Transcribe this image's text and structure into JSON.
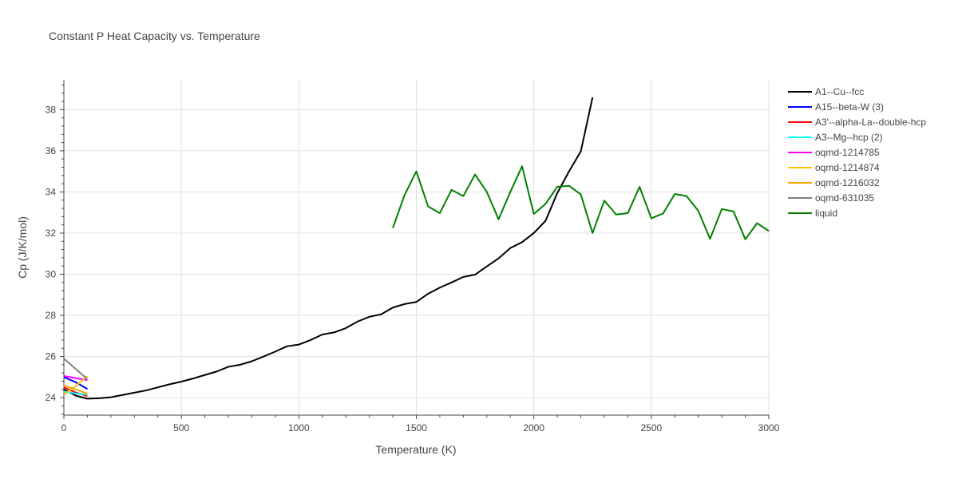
{
  "chart_data": {
    "type": "line",
    "title": "Constant P Heat Capacity vs. Temperature",
    "xlabel": "Temperature (K)",
    "ylabel": "Cp (J/K/mol)",
    "xlim": [
      0,
      3000
    ],
    "ylim": [
      23.15,
      39.45
    ],
    "xticks": [
      0,
      500,
      1000,
      1500,
      2000,
      2500,
      3000
    ],
    "xtick_labels": [
      "0",
      "500",
      "1000",
      "1500",
      "2000",
      "2500",
      "3000"
    ],
    "yticks": [
      24,
      26,
      28,
      30,
      32,
      34,
      36,
      38
    ],
    "ytick_labels": [
      "24",
      "26",
      "28",
      "30",
      "32",
      "34",
      "36",
      "38"
    ],
    "grid": true,
    "legend_position": "right",
    "series": [
      {
        "name": "A1--Cu--fcc",
        "color": "#000000",
        "x": [
          0,
          50,
          100,
          150,
          200,
          250,
          300,
          350,
          400,
          450,
          500,
          550,
          600,
          650,
          700,
          750,
          800,
          850,
          900,
          950,
          1000,
          1050,
          1100,
          1150,
          1200,
          1250,
          1300,
          1350,
          1400,
          1450,
          1500,
          1550,
          1600,
          1650,
          1700,
          1750,
          1800,
          1850,
          1900,
          1950,
          2000,
          2050,
          2100,
          2150,
          2200,
          2250
        ],
        "y": [
          24.4,
          24.1,
          23.95,
          23.97,
          24.02,
          24.13,
          24.24,
          24.35,
          24.5,
          24.65,
          24.78,
          24.93,
          25.1,
          25.27,
          25.5,
          25.6,
          25.77,
          26.0,
          26.24,
          26.5,
          26.58,
          26.8,
          27.07,
          27.17,
          27.38,
          27.7,
          27.93,
          28.05,
          28.38,
          28.55,
          28.65,
          29.05,
          29.35,
          29.6,
          29.87,
          29.98,
          30.38,
          30.77,
          31.27,
          31.56,
          32.0,
          32.6,
          33.95,
          35.0,
          35.97,
          38.6
        ]
      },
      {
        "name": "A15--beta-W (3)",
        "color": "#0000ff",
        "x": [
          0,
          50,
          100
        ],
        "y": [
          25.0,
          24.75,
          24.42
        ]
      },
      {
        "name": "A3'--alpha-La--double-hcp",
        "color": "#ff0000",
        "x": [
          0,
          50,
          100
        ],
        "y": [
          24.5,
          24.25,
          24.08
        ]
      },
      {
        "name": "A3--Mg--hcp (2)",
        "color": "#00ffff",
        "x": [
          0,
          50,
          100
        ],
        "y": [
          24.3,
          24.2,
          24.15
        ]
      },
      {
        "name": "oqmd-1214785",
        "color": "#ff00ff",
        "x": [
          0,
          50,
          100
        ],
        "y": [
          25.05,
          24.95,
          24.85
        ]
      },
      {
        "name": "oqmd-1214874",
        "color": "#ffc000",
        "x": [
          0,
          50,
          100
        ],
        "y": [
          24.15,
          24.55,
          25.05
        ]
      },
      {
        "name": "oqmd-1216032",
        "color": "#ffa500",
        "x": [
          0,
          50,
          100
        ],
        "y": [
          24.6,
          24.4,
          24.2
        ]
      },
      {
        "name": "oqmd-631035",
        "color": "#808080",
        "x": [
          0,
          50,
          100
        ],
        "y": [
          25.9,
          25.4,
          24.9
        ]
      },
      {
        "name": "liquid",
        "color": "#008000",
        "x": [
          1400,
          1450,
          1500,
          1550,
          1600,
          1650,
          1700,
          1750,
          1800,
          1850,
          1900,
          1950,
          2000,
          2050,
          2100,
          2150,
          2200,
          2250,
          2300,
          2350,
          2400,
          2450,
          2500,
          2550,
          2600,
          2650,
          2700,
          2750,
          2800,
          2850,
          2900,
          2950,
          3000
        ],
        "y": [
          32.25,
          33.85,
          35.0,
          33.3,
          32.97,
          34.1,
          33.8,
          34.85,
          34.0,
          32.67,
          34.0,
          35.25,
          32.93,
          33.42,
          34.25,
          34.3,
          33.88,
          32.0,
          33.58,
          32.9,
          32.97,
          34.25,
          32.72,
          32.95,
          33.9,
          33.8,
          33.08,
          31.72,
          33.17,
          33.05,
          31.7,
          32.48,
          32.1
        ]
      }
    ]
  }
}
